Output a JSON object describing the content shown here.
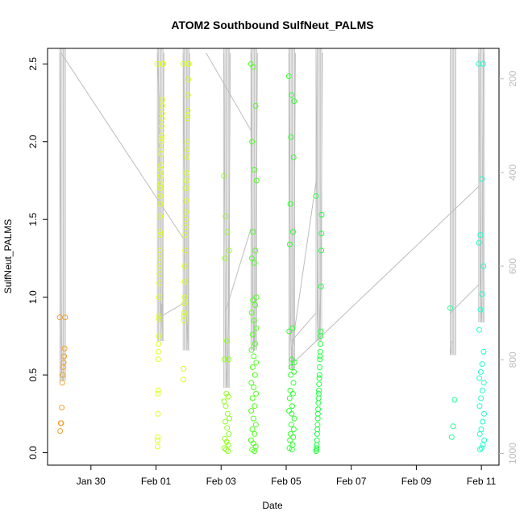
{
  "chart_data": {
    "type": "scatter",
    "title": "ATOM2 Southbound SulfNeut_PALMS",
    "xlabel": "Date",
    "ylabel": "SulfNeut_PALMS",
    "x_ticks": [
      "Jan 30",
      "Feb 01",
      "Feb 03",
      "Feb 05",
      "Feb 07",
      "Feb 09",
      "Feb 11"
    ],
    "y_ticks": [
      "0.0",
      "0.5",
      "1.0",
      "1.5",
      "2.0",
      "2.5"
    ],
    "y_right_ticks": [
      "200",
      "400",
      "600",
      "800",
      "1000"
    ],
    "xlim": [
      "2017-01-28T16:00",
      "2017-02-11T13:00"
    ],
    "ylim": [
      -0.08,
      2.6
    ],
    "y_right_lim": [
      1025,
      135
    ],
    "grid": false,
    "legend": "none",
    "point_color_order": [
      "#ff8c00",
      "#ffff00",
      "#00ff00",
      "#00ffbf"
    ],
    "track_color": "#bdbdbd",
    "series": [
      {
        "date": "2017-01-29T01:00",
        "color": "#f0a030",
        "values": [
          0.87,
          0.87,
          0.67,
          0.62,
          0.58,
          0.55,
          0.5,
          0.45,
          0.29,
          0.19,
          0.19,
          0.14
        ],
        "altitude_track": [
          [
            0.0,
            145
          ],
          [
            0.05,
            820
          ],
          [
            0.1,
            845
          ]
        ]
      },
      {
        "date": "2017-02-01T01:00",
        "color": "#e0ff20",
        "values": [
          2.5,
          2.5,
          2.5,
          2.5,
          2.5,
          2.5,
          2.5,
          2.27,
          2.23,
          2.18,
          2.15,
          2.1,
          2.04,
          2.02,
          2.0,
          1.95,
          1.92,
          1.85,
          1.82,
          1.78,
          1.73,
          1.7,
          1.65,
          1.6,
          1.52,
          1.42,
          1.4,
          1.3,
          1.25,
          1.2,
          1.15,
          1.09,
          1.0,
          0.88,
          0.86,
          0.75,
          0.7,
          0.65,
          0.6,
          0.4,
          0.38,
          0.25,
          0.1,
          0.08,
          0.04
        ],
        "altitude_track": [
          [
            0.0,
            145
          ],
          [
            0.05,
            250
          ],
          [
            0.08,
            720
          ],
          [
            0.12,
            680
          ],
          [
            0.15,
            760
          ],
          [
            0.2,
            145
          ]
        ]
      },
      {
        "date": "2017-02-01T20:00",
        "color": "#d4ff20",
        "values": [
          2.5,
          2.5,
          2.5,
          2.5,
          2.4,
          2.3,
          2.2,
          2.17,
          2.15,
          2.0,
          1.95,
          1.9,
          1.8,
          1.75,
          1.7,
          1.62,
          1.55,
          1.5,
          1.45,
          1.4,
          1.3,
          1.2,
          1.1,
          1.0,
          0.96,
          0.9,
          0.88,
          0.85,
          0.54,
          0.47
        ],
        "altitude_track": [
          [
            0.0,
            145
          ],
          [
            0.05,
            560
          ],
          [
            0.1,
            700
          ],
          [
            0.15,
            780
          ],
          [
            0.2,
            145
          ]
        ]
      },
      {
        "date": "2017-02-03T02:00",
        "color": "#90ff20",
        "values": [
          1.78,
          1.52,
          1.42,
          1.3,
          1.25,
          0.72,
          0.6,
          0.6,
          0.38,
          0.36,
          0.33,
          0.3,
          0.25,
          0.22,
          0.2,
          0.16,
          0.12,
          0.09,
          0.07,
          0.05,
          0.03,
          0.02,
          0.01
        ],
        "altitude_track": [
          [
            0.0,
            145
          ],
          [
            0.05,
            780
          ],
          [
            0.1,
            860
          ],
          [
            0.15,
            700
          ],
          [
            0.2,
            145
          ]
        ]
      },
      {
        "date": "2017-02-03T22:00",
        "color": "#50ff20",
        "values": [
          2.5,
          2.48,
          2.23,
          2.0,
          1.82,
          1.75,
          1.42,
          1.3,
          1.25,
          1.22,
          1.0,
          0.98,
          0.95,
          0.9,
          0.85,
          0.8,
          0.76,
          0.7,
          0.66,
          0.62,
          0.58,
          0.55,
          0.5,
          0.45,
          0.42,
          0.38,
          0.35,
          0.3,
          0.27,
          0.22,
          0.18,
          0.15,
          0.12,
          0.08,
          0.06,
          0.04,
          0.02,
          0.01
        ],
        "altitude_track": [
          [
            0.0,
            145
          ],
          [
            0.05,
            650
          ],
          [
            0.1,
            780
          ],
          [
            0.15,
            700
          ],
          [
            0.2,
            145
          ]
        ]
      },
      {
        "date": "2017-02-05T02:00",
        "color": "#30ff30",
        "values": [
          2.42,
          2.3,
          2.26,
          2.03,
          1.9,
          1.6,
          1.42,
          1.34,
          0.8,
          0.78,
          0.6,
          0.58,
          0.55,
          0.52,
          0.5,
          0.45,
          0.4,
          0.38,
          0.35,
          0.3,
          0.27,
          0.25,
          0.22,
          0.18,
          0.15,
          0.12,
          0.1,
          0.08,
          0.05,
          0.03,
          0.02
        ],
        "altitude_track": [
          [
            0.0,
            145
          ],
          [
            0.05,
            740
          ],
          [
            0.1,
            820
          ],
          [
            0.15,
            760
          ],
          [
            0.2,
            145
          ]
        ]
      },
      {
        "date": "2017-02-05T22:00",
        "color": "#20ff40",
        "values": [
          1.65,
          1.53,
          1.41,
          1.3,
          1.07,
          0.78,
          0.75,
          0.7,
          0.65,
          0.62,
          0.6,
          0.55,
          0.5,
          0.48,
          0.44,
          0.4,
          0.38,
          0.35,
          0.32,
          0.28,
          0.25,
          0.22,
          0.18,
          0.15,
          0.12,
          0.08,
          0.05,
          0.03,
          0.02,
          0.01
        ],
        "altitude_track": [
          [
            0.0,
            145
          ],
          [
            0.05,
            700
          ],
          [
            0.1,
            760
          ],
          [
            0.15,
            640
          ],
          [
            0.2,
            145
          ]
        ]
      },
      {
        "date": "2017-02-10T01:00",
        "color": "#20ff90",
        "values": [
          0.93,
          0.34,
          0.17,
          0.1
        ],
        "altitude_track": [
          [
            0.0,
            790
          ],
          [
            0.05,
            760
          ]
        ]
      },
      {
        "date": "2017-02-10T22:00",
        "color": "#20ffcc",
        "values": [
          2.5,
          2.5,
          1.76,
          1.4,
          1.35,
          1.2,
          1.02,
          0.92,
          0.79,
          0.65,
          0.57,
          0.52,
          0.48,
          0.45,
          0.4,
          0.35,
          0.3,
          0.25,
          0.2,
          0.15,
          0.12,
          0.08,
          0.05,
          0.03,
          0.02
        ],
        "altitude_track": [
          [
            0.0,
            145
          ],
          [
            0.05,
            620
          ],
          [
            0.1,
            720
          ],
          [
            0.15,
            145
          ]
        ]
      }
    ],
    "transit_lines": [
      [
        [
          "2017-01-29T02:00",
          145
        ],
        [
          "2017-02-01T20:00",
          540
        ]
      ],
      [
        [
          "2017-02-02T13:00",
          145
        ],
        [
          "2017-02-03T22:00",
          310
        ]
      ],
      [
        [
          "2017-02-03T04:00",
          690
        ],
        [
          "2017-02-03T22:00",
          520
        ]
      ],
      [
        [
          "2017-02-05T04:00",
          780
        ],
        [
          "2017-02-05T22:00",
          420
        ]
      ],
      [
        [
          "2017-02-05T04:00",
          810
        ],
        [
          "2017-02-10T22:00",
          430
        ]
      ],
      [
        [
          "2017-02-10T01:00",
          700
        ],
        [
          "2017-02-10T22:00",
          640
        ]
      ],
      [
        [
          "2017-02-01T02:00",
          710
        ],
        [
          "2017-02-01T20:00",
          680
        ]
      ],
      [
        [
          "2017-02-05T22:00",
          700
        ],
        [
          "2017-02-05T04:00",
          760
        ]
      ]
    ]
  }
}
